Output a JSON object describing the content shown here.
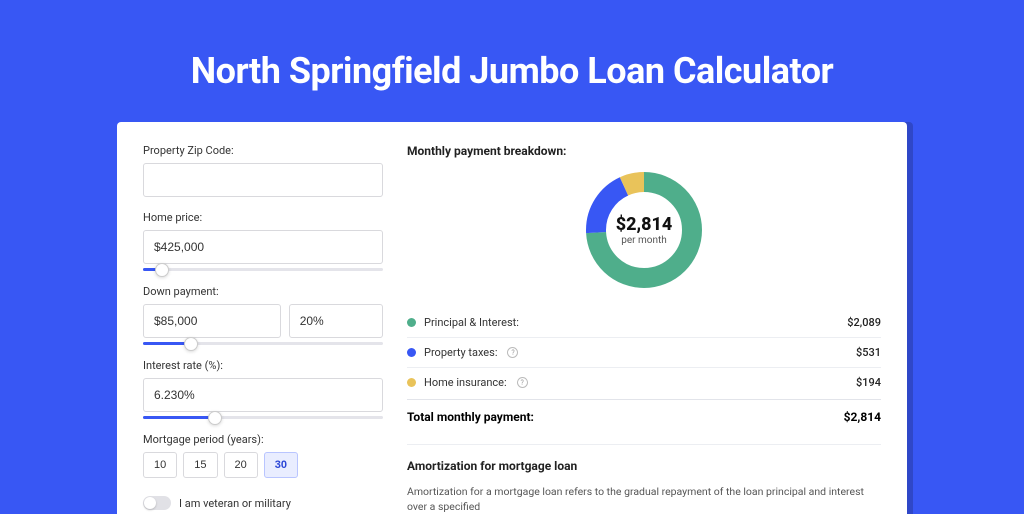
{
  "hero": {
    "title": "North Springfield Jumbo Loan Calculator"
  },
  "form": {
    "zip_label": "Property Zip Code:",
    "zip_value": "",
    "home_price_label": "Home price:",
    "home_price_value": "$425,000",
    "home_price_slider_pct": 8,
    "down_label": "Down payment:",
    "down_amount": "$85,000",
    "down_pct": "20%",
    "down_slider_pct": 20,
    "rate_label": "Interest rate (%):",
    "rate_value": "6.230%",
    "rate_slider_pct": 30,
    "period_label": "Mortgage period (years):",
    "periods": [
      "10",
      "15",
      "20",
      "30"
    ],
    "period_active_index": 3,
    "veteran_label": "I am veteran or military",
    "veteran_on": false
  },
  "breakdown": {
    "title": "Monthly payment breakdown:",
    "donut": {
      "amount": "$2,814",
      "sub": "per month",
      "segments": [
        {
          "label": "Principal & Interest",
          "color": "#4fae8b",
          "pct": 74
        },
        {
          "label": "Property taxes",
          "color": "#3857f4",
          "pct": 19
        },
        {
          "label": "Home insurance",
          "color": "#e9c35a",
          "pct": 7
        }
      ],
      "stroke_width": 20,
      "radius": 48,
      "bg": "#ffffff"
    },
    "rows": [
      {
        "label": "Principal & Interest:",
        "value": "$2,089",
        "color": "#4fae8b",
        "info": false
      },
      {
        "label": "Property taxes:",
        "value": "$531",
        "color": "#3857f4",
        "info": true
      },
      {
        "label": "Home insurance:",
        "value": "$194",
        "color": "#e9c35a",
        "info": true
      }
    ],
    "total_label": "Total monthly payment:",
    "total_value": "$2,814"
  },
  "amort": {
    "title": "Amortization for mortgage loan",
    "text": "Amortization for a mortgage loan refers to the gradual repayment of the loan principal and interest over a specified"
  },
  "colors": {
    "page_bg": "#3857f4",
    "panel_bg": "#ffffff",
    "accent": "#3857f4",
    "border": "#d9d9dd"
  }
}
